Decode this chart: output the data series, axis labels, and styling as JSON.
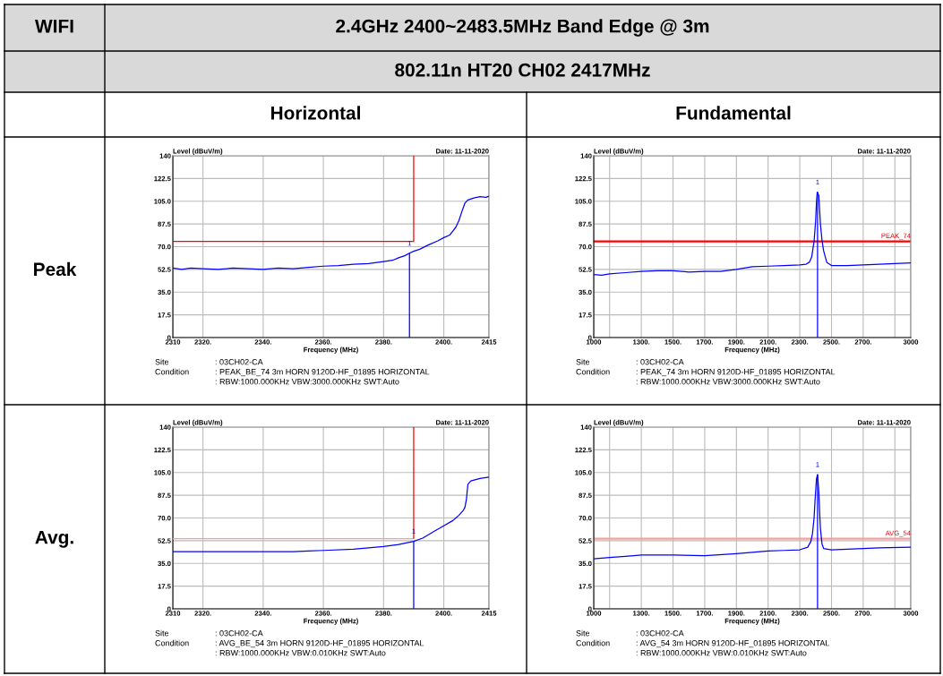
{
  "chart_data": [
    {
      "type": "other",
      "title": "2.4GHz 2400~2483.5MHz Band Edge @ 3m",
      "annotations": [
        "WIFI",
        "802.11n HT20 CH02 2417MHz",
        "Horizontal",
        "Fundamental",
        "Peak",
        "Avg."
      ]
    },
    {
      "type": "line",
      "xlabel": "Frequency (MHz)",
      "ylabel": "Level (dBuV/m)",
      "grid": true,
      "xlim": [
        2310,
        2415
      ],
      "xticks": [
        2310,
        {
          "value": 2320,
          "label": "2320."
        },
        {
          "value": 2340,
          "label": "2340."
        },
        {
          "value": 2360,
          "label": "2360."
        },
        {
          "value": 2380,
          "label": "2380."
        },
        {
          "value": 2400,
          "label": "2400."
        },
        2415
      ],
      "ylim": [
        0,
        140
      ],
      "yticks": [
        0,
        17.5,
        {
          "value": 35,
          "label": "35.0"
        },
        52.5,
        {
          "value": 70,
          "label": "70.0"
        },
        87.5,
        {
          "value": 105,
          "label": "105.0"
        },
        122.5,
        140
      ],
      "series": [
        {
          "color": "#0000ff",
          "x": [
            2310,
            2313,
            2316,
            2320,
            2325,
            2330,
            2335,
            2340,
            2345,
            2350,
            2355,
            2360,
            2365,
            2370,
            2375,
            2380,
            2383,
            2385,
            2387,
            2388.6,
            2390,
            2392,
            2395,
            2398,
            2400,
            2402,
            2403,
            2404,
            2405,
            2406,
            2407,
            2408,
            2410,
            2412,
            2414,
            2415
          ],
          "values": [
            53.5,
            52.5,
            53.5,
            53,
            52.5,
            53.5,
            53,
            52.5,
            53.5,
            53,
            54,
            55,
            55.5,
            56.5,
            57,
            58.5,
            59.5,
            61.5,
            63,
            65,
            66.5,
            68,
            71.5,
            74.5,
            77,
            79,
            82,
            85,
            90,
            97,
            103.5,
            106,
            107.5,
            108.5,
            108,
            109
          ]
        },
        {
          "color": "#0000ff",
          "x": [
            2388.6,
            2388.6
          ],
          "values": [
            0,
            65
          ]
        },
        {
          "color": "#ff0000",
          "x": [
            2310,
            2390,
            2390
          ],
          "values": [
            74,
            74,
            140
          ]
        }
      ],
      "annotations": [
        "Date: 11-11-2020",
        "Site",
        "Condition",
        ": 03CH02-CA",
        ": PEAK_BE_74 3m HORN 9120D-HF_01895 HORIZONTAL",
        ": RBW:1000.000KHz VBW:3000.000KHz SWT:Auto",
        {
          "text": "1",
          "x": 2388.6,
          "y": 65
        }
      ]
    },
    {
      "type": "line",
      "xlabel": "Frequency (MHz)",
      "ylabel": "Level (dBuV/m)",
      "grid": true,
      "xlim": [
        1000,
        3000
      ],
      "xticks": [
        1000,
        {
          "value": 1100,
          "label": null
        },
        {
          "value": 1300,
          "label": "1300."
        },
        {
          "value": 1500,
          "label": "1500."
        },
        {
          "value": 1700,
          "label": "1700."
        },
        {
          "value": 1900,
          "label": "1900."
        },
        {
          "value": 2100,
          "label": "2100."
        },
        {
          "value": 2300,
          "label": "2300."
        },
        {
          "value": 2500,
          "label": "2500."
        },
        {
          "value": 2700,
          "label": "2700."
        },
        {
          "value": 2900,
          "label": null
        },
        3000
      ],
      "ylim": [
        0,
        140
      ],
      "yticks": [
        0,
        17.5,
        {
          "value": 35,
          "label": "35.0"
        },
        52.5,
        {
          "value": 70,
          "label": "70.0"
        },
        87.5,
        {
          "value": 105,
          "label": "105.0"
        },
        122.5,
        140
      ],
      "series": [
        {
          "color": "#0000ff",
          "x": [
            1000,
            1050,
            1100,
            1200,
            1300,
            1400,
            1500,
            1600,
            1700,
            1800,
            1900,
            1950,
            2000,
            2100,
            2200,
            2300,
            2340,
            2360,
            2375,
            2390,
            2400,
            2405,
            2410,
            2420,
            2425,
            2430,
            2440,
            2450,
            2470,
            2500,
            2600,
            2700,
            2800,
            2900,
            3000
          ],
          "values": [
            48.5,
            48,
            49,
            50,
            51,
            51.5,
            51.5,
            50.5,
            51,
            51,
            52.5,
            53.5,
            54.5,
            55,
            55.5,
            56,
            56.5,
            58,
            62,
            74,
            90,
            104,
            112,
            109.5,
            98,
            87.5,
            75,
            67,
            58,
            55.5,
            55.5,
            56,
            56.5,
            57,
            57.5
          ]
        },
        {
          "color": "#0000ff",
          "x": [
            2412,
            2412
          ],
          "values": [
            0,
            112
          ]
        }
      ],
      "ref_lines": [
        {
          "axis": "y",
          "value": 74,
          "label": "PEAK_74",
          "color": "#ff0000"
        }
      ],
      "annotations": [
        "Date: 11-11-2020",
        "Site",
        "Condition",
        ": 03CH02-CA",
        ": PEAK_74 3m HORN 9120D-HF_01895 HORIZONTAL",
        ": RBW:1000.000KHz VBW:3000.000KHz SWT:Auto",
        {
          "text": "1",
          "x": 2412,
          "y": 112
        }
      ]
    },
    {
      "type": "line",
      "xlabel": "Frequency (MHz)",
      "ylabel": "Level (dBuV/m)",
      "grid": true,
      "xlim": [
        2310,
        2415
      ],
      "xticks": [
        2310,
        {
          "value": 2320,
          "label": "2320."
        },
        {
          "value": 2340,
          "label": "2340."
        },
        {
          "value": 2360,
          "label": "2360."
        },
        {
          "value": 2380,
          "label": "2380."
        },
        {
          "value": 2400,
          "label": "2400."
        },
        2415
      ],
      "ylim": [
        0,
        140
      ],
      "yticks": [
        0,
        17.5,
        {
          "value": 35,
          "label": "35.0"
        },
        52.5,
        {
          "value": 70,
          "label": "70.0"
        },
        87.5,
        {
          "value": 105,
          "label": "105.0"
        },
        122.5,
        140
      ],
      "series": [
        {
          "color": "#0000ff",
          "x": [
            2310,
            2330,
            2350,
            2355,
            2360,
            2370,
            2380,
            2385,
            2390,
            2393,
            2397,
            2400,
            2403,
            2405,
            2406.5,
            2407,
            2407.5,
            2408,
            2409,
            2412,
            2415
          ],
          "values": [
            44,
            44,
            44,
            44.5,
            45,
            46,
            48,
            49.5,
            52,
            54.5,
            60,
            64,
            68,
            72,
            76,
            78,
            84,
            96,
            98.5,
            100.5,
            101.5
          ]
        },
        {
          "color": "#0000ff",
          "x": [
            2390,
            2390
          ],
          "values": [
            0,
            52
          ]
        },
        {
          "color": "#f4a0a0",
          "x": [
            2310,
            2390
          ],
          "values": [
            54,
            54
          ]
        },
        {
          "color": "#ff0000",
          "x": [
            2390,
            2390
          ],
          "values": [
            54,
            140
          ]
        }
      ],
      "annotations": [
        "Date: 11-11-2020",
        "Site",
        "Condition",
        ": 03CH02-CA",
        ": AVG_BE_54 3m HORN 9120D-HF_01895 HORIZONTAL",
        ": RBW:1000.000KHz VBW:0.010KHz SWT:Auto",
        {
          "text": "1",
          "x": 2390,
          "y": 52
        }
      ]
    },
    {
      "type": "line",
      "xlabel": "Frequency (MHz)",
      "ylabel": "Level (dBuV/m)",
      "grid": true,
      "xlim": [
        1000,
        3000
      ],
      "xticks": [
        1000,
        {
          "value": 1100,
          "label": null
        },
        {
          "value": 1300,
          "label": "1300."
        },
        {
          "value": 1500,
          "label": "1500."
        },
        {
          "value": 1700,
          "label": "1700."
        },
        {
          "value": 1900,
          "label": "1900."
        },
        {
          "value": 2100,
          "label": "2100."
        },
        {
          "value": 2300,
          "label": "2300."
        },
        {
          "value": 2500,
          "label": "2500."
        },
        {
          "value": 2700,
          "label": "2700."
        },
        {
          "value": 2900,
          "label": null
        },
        3000
      ],
      "ylim": [
        0,
        140
      ],
      "yticks": [
        0,
        17.5,
        {
          "value": 35,
          "label": "35.0"
        },
        52.5,
        {
          "value": 70,
          "label": "70.0"
        },
        87.5,
        {
          "value": 105,
          "label": "105.0"
        },
        122.5,
        140
      ],
      "series": [
        {
          "color": "#0000ff",
          "x": [
            1000,
            1100,
            1200,
            1300,
            1500,
            1700,
            1900,
            2100,
            2200,
            2300,
            2350,
            2370,
            2380,
            2390,
            2395,
            2405,
            2412,
            2420,
            2425,
            2430,
            2440,
            2450,
            2500,
            2600,
            2800,
            3000
          ],
          "values": [
            38.5,
            39.5,
            40.5,
            41.5,
            41.5,
            41,
            42.5,
            44.5,
            45,
            45.5,
            47.5,
            52,
            58,
            70,
            81,
            100,
            103.5,
            90,
            75,
            62,
            50,
            46.5,
            45.5,
            46,
            47,
            47.5
          ]
        },
        {
          "color": "#0000ff",
          "x": [
            2412,
            2412
          ],
          "values": [
            0,
            103.5
          ]
        }
      ],
      "ref_lines": [
        {
          "axis": "y",
          "value": 54,
          "label": "AVG_54",
          "color": "#f4a0a0"
        }
      ],
      "annotations": [
        "Date: 11-11-2020",
        "Site",
        "Condition",
        ": 03CH02-CA",
        ": AVG_54 3m HORN 9120D-HF_01895 HORIZONTAL",
        ": RBW:1000.000KHz VBW:0.010KHz SWT:Auto",
        {
          "text": "1",
          "x": 2412,
          "y": 103.5
        }
      ]
    }
  ]
}
